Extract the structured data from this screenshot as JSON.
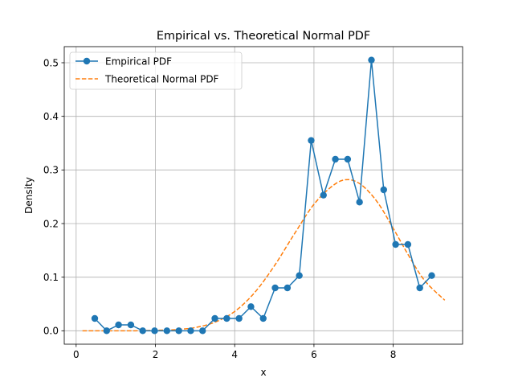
{
  "chart_data": {
    "type": "line",
    "title": "Empirical vs. Theoretical Normal PDF",
    "xlabel": "x",
    "ylabel": "Density",
    "xlim": [
      -0.3,
      9.75
    ],
    "ylim": [
      -0.025,
      0.53
    ],
    "xticks": [
      0,
      2,
      4,
      6,
      8
    ],
    "yticks": [
      0.0,
      0.1,
      0.2,
      0.3,
      0.4,
      0.5
    ],
    "ytick_labels": [
      "0.0",
      "0.1",
      "0.2",
      "0.3",
      "0.4",
      "0.5"
    ],
    "grid": true,
    "legend": "upper-left",
    "series": [
      {
        "name": "Empirical PDF",
        "style": "solid-line-circle-markers",
        "color": "#1f77b4",
        "x": [
          0.47,
          0.77,
          1.07,
          1.38,
          1.68,
          1.98,
          2.29,
          2.59,
          2.89,
          3.19,
          3.5,
          3.8,
          4.11,
          4.41,
          4.72,
          5.02,
          5.33,
          5.63,
          5.93,
          6.24,
          6.54,
          6.85,
          7.15,
          7.45,
          7.76,
          8.06,
          8.37,
          8.67,
          8.97
        ],
        "values": [
          0.023,
          0.0,
          0.011,
          0.011,
          0.0,
          0.0,
          0.0,
          0.0,
          0.0,
          0.0,
          0.023,
          0.023,
          0.023,
          0.045,
          0.023,
          0.08,
          0.08,
          0.103,
          0.355,
          0.253,
          0.32,
          0.32,
          0.24,
          0.505,
          0.263,
          0.161,
          0.161,
          0.08,
          0.103
        ]
      },
      {
        "name": "Theoretical Normal PDF",
        "style": "dashed-line",
        "color": "#ff7f0e",
        "x": [
          0.16,
          0.5,
          1.0,
          1.5,
          2.0,
          2.5,
          3.0,
          3.5,
          4.0,
          4.5,
          5.0,
          5.5,
          6.0,
          6.5,
          6.85,
          7.2,
          7.6,
          8.0,
          8.4,
          8.8,
          9.3
        ],
        "values": [
          0.0,
          0.0,
          0.0,
          0.0,
          0.001,
          0.002,
          0.006,
          0.016,
          0.036,
          0.071,
          0.121,
          0.18,
          0.236,
          0.272,
          0.282,
          0.272,
          0.24,
          0.191,
          0.139,
          0.093,
          0.057
        ]
      }
    ]
  }
}
